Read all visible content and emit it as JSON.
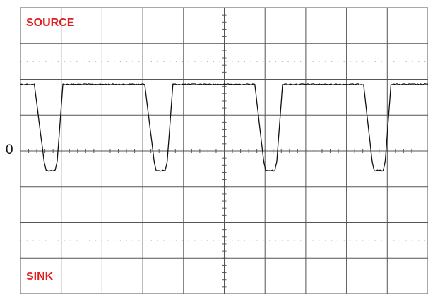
{
  "chart_data": {
    "type": "line",
    "title": "",
    "xlabel": "",
    "ylabel": "",
    "labels": {
      "top": "SOURCE",
      "bottom": "SINK",
      "zero": "0"
    },
    "grid": true,
    "x_divisions": 10,
    "y_divisions": 8,
    "xlim": [
      0,
      10
    ],
    "ylim": [
      -4,
      4
    ],
    "series": [
      {
        "values": [
          {
            "x": 0.0,
            "y": 1.86
          },
          {
            "x": 0.34,
            "y": 1.86
          },
          {
            "x": 0.58,
            "y": -0.3
          },
          {
            "x": 0.63,
            "y": -0.55
          },
          {
            "x": 0.85,
            "y": -0.55
          },
          {
            "x": 0.9,
            "y": -0.3
          },
          {
            "x": 1.04,
            "y": 1.86
          },
          {
            "x": 3.05,
            "y": 1.86
          },
          {
            "x": 3.28,
            "y": -0.3
          },
          {
            "x": 3.33,
            "y": -0.55
          },
          {
            "x": 3.55,
            "y": -0.55
          },
          {
            "x": 3.6,
            "y": -0.3
          },
          {
            "x": 3.74,
            "y": 1.86
          },
          {
            "x": 5.75,
            "y": 1.86
          },
          {
            "x": 5.97,
            "y": -0.3
          },
          {
            "x": 6.02,
            "y": -0.55
          },
          {
            "x": 6.24,
            "y": -0.55
          },
          {
            "x": 6.29,
            "y": -0.3
          },
          {
            "x": 6.43,
            "y": 1.86
          },
          {
            "x": 8.42,
            "y": 1.86
          },
          {
            "x": 8.63,
            "y": -0.3
          },
          {
            "x": 8.68,
            "y": -0.55
          },
          {
            "x": 8.9,
            "y": -0.55
          },
          {
            "x": 8.95,
            "y": -0.3
          },
          {
            "x": 9.09,
            "y": 1.86
          },
          {
            "x": 10.0,
            "y": 1.86
          }
        ],
        "color": "#111111"
      }
    ],
    "colors": {
      "grid": "#555555",
      "dots": "#888888",
      "trace": "#111111",
      "label_red": "#e02020"
    }
  }
}
